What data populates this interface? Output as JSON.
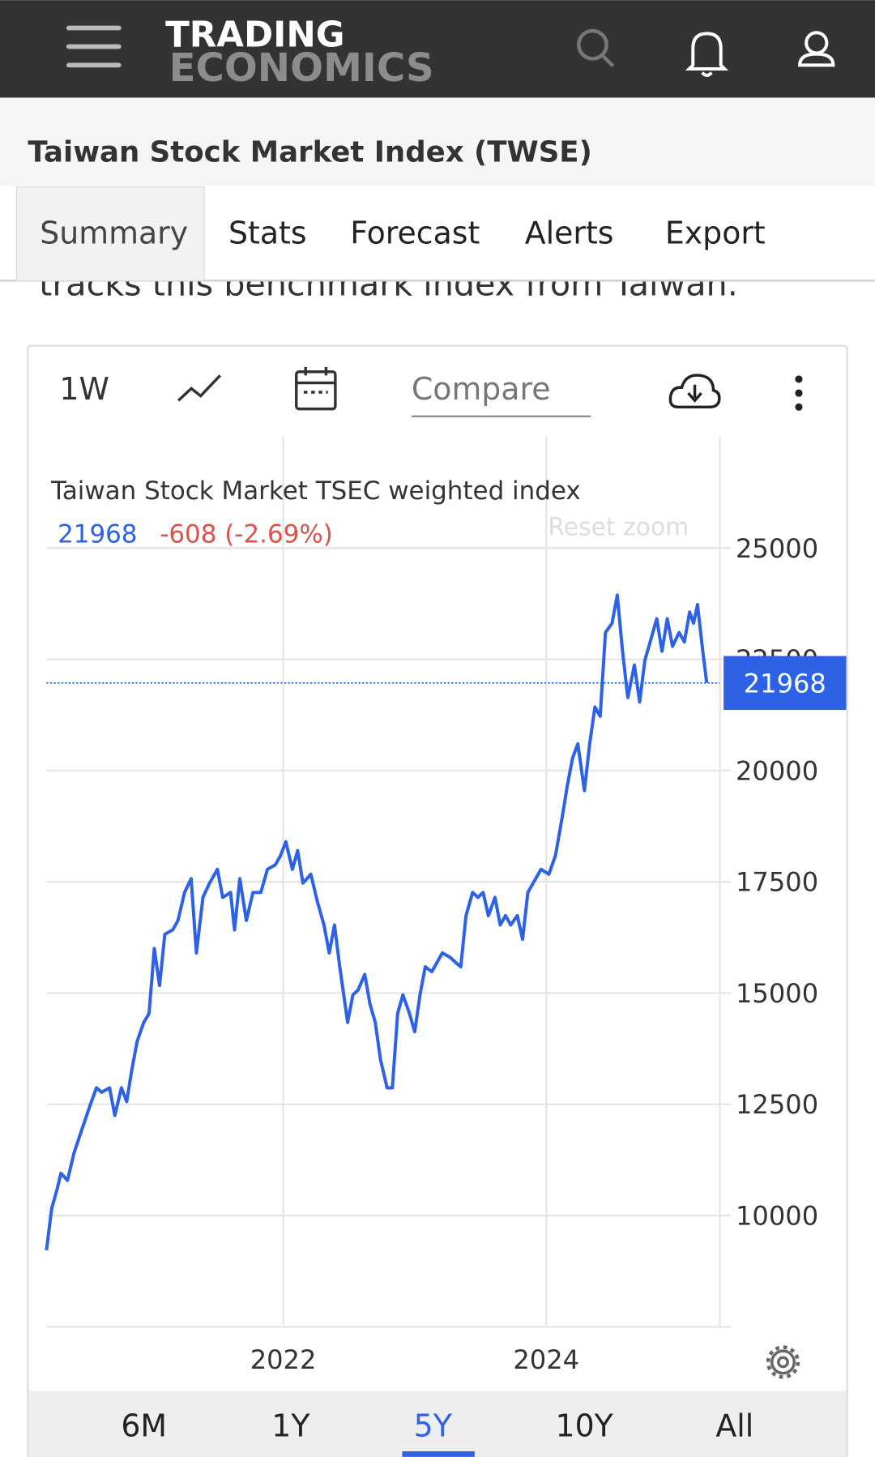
{
  "header": {
    "brand_top": "TRADING",
    "brand_bottom": "ECONOMICS"
  },
  "page_title": "Taiwan Stock Market Index (TWSE)",
  "tabs": [
    "Summary",
    "Stats",
    "Forecast",
    "Alerts",
    "Export"
  ],
  "selected_tab": "Summary",
  "intro_text": "tracks this benchmark index from Taiwan.",
  "toolbar": {
    "interval": "1W",
    "compare": "Compare"
  },
  "chart_data": {
    "type": "line",
    "x": [
      2020.2,
      2020.24,
      2020.28,
      2020.31,
      2020.36,
      2020.41,
      2020.47,
      2020.53,
      2020.58,
      2020.62,
      2020.68,
      2020.72,
      2020.77,
      2020.81,
      2020.85,
      2020.89,
      2020.94,
      2020.98,
      2021.02,
      2021.06,
      2021.1,
      2021.16,
      2021.2,
      2021.25,
      2021.3,
      2021.34,
      2021.39,
      2021.44,
      2021.5,
      2021.54,
      2021.6,
      2021.63,
      2021.67,
      2021.72,
      2021.77,
      2021.83,
      2021.88,
      2021.94,
      2021.98,
      2022.02,
      2022.07,
      2022.11,
      2022.15,
      2022.21,
      2022.26,
      2022.31,
      2022.35,
      2022.39,
      2022.43,
      2022.49,
      2022.53,
      2022.57,
      2022.62,
      2022.66,
      2022.7,
      2022.74,
      2022.79,
      2022.83,
      2022.87,
      2022.91,
      2022.96,
      2023.0,
      2023.04,
      2023.08,
      2023.13,
      2023.17,
      2023.21,
      2023.27,
      2023.31,
      2023.35,
      2023.39,
      2023.44,
      2023.48,
      2023.52,
      2023.56,
      2023.61,
      2023.65,
      2023.69,
      2023.73,
      2023.78,
      2023.82,
      2023.86,
      2023.9,
      2023.96,
      2024.02,
      2024.07,
      2024.12,
      2024.16,
      2024.2,
      2024.24,
      2024.29,
      2024.33,
      2024.37,
      2024.41,
      2024.45,
      2024.5,
      2024.54,
      2024.58,
      2024.62,
      2024.67,
      2024.71,
      2024.75,
      2024.79,
      2024.84,
      2024.88,
      2024.92,
      2024.96,
      2025.01,
      2025.05,
      2025.09,
      2025.12,
      2025.15,
      2025.19,
      2025.22
    ],
    "series": [
      {
        "name": "Taiwan Stock Market TSEC weighted index",
        "color": "#2d62e6",
        "values": [
          9220,
          10160,
          10580,
          10950,
          10790,
          11410,
          11940,
          12460,
          12870,
          12770,
          12870,
          12250,
          12870,
          12560,
          13290,
          13920,
          14340,
          14540,
          16000,
          15170,
          16320,
          16420,
          16630,
          17260,
          17570,
          15900,
          17150,
          17470,
          17780,
          17150,
          17260,
          16420,
          17570,
          16630,
          17260,
          17260,
          17780,
          17880,
          18090,
          18400,
          17780,
          18200,
          17470,
          17670,
          17050,
          16530,
          15900,
          16530,
          15590,
          14340,
          14960,
          15070,
          15420,
          14750,
          14340,
          13500,
          12870,
          12870,
          14540,
          14960,
          14540,
          14130,
          14960,
          15590,
          15480,
          15690,
          15900,
          15800,
          15690,
          15590,
          16740,
          17260,
          17150,
          17260,
          16740,
          17150,
          16530,
          16740,
          16530,
          16740,
          16210,
          17260,
          17470,
          17780,
          17670,
          18090,
          18930,
          19660,
          20280,
          20600,
          19550,
          20600,
          21430,
          21220,
          23100,
          23310,
          23940,
          22680,
          21640,
          22370,
          21540,
          22480,
          22890,
          23410,
          22680,
          23410,
          22790,
          23100,
          22890,
          23560,
          23310,
          23730,
          22680,
          21968
        ]
      }
    ],
    "change_label": "-608 (-2.69%)",
    "reset_zoom": "Reset zoom",
    "xlim": [
      2020.2,
      2025.32
    ],
    "ylim": [
      7500,
      27500
    ],
    "xticks": [
      2022,
      2024
    ],
    "yticks": [
      10000,
      12500,
      15000,
      17500,
      20000,
      22500,
      25000
    ],
    "grid": true
  },
  "ranges": [
    "6M",
    "1Y",
    "5Y",
    "10Y",
    "All"
  ],
  "selected_range": "5Y"
}
